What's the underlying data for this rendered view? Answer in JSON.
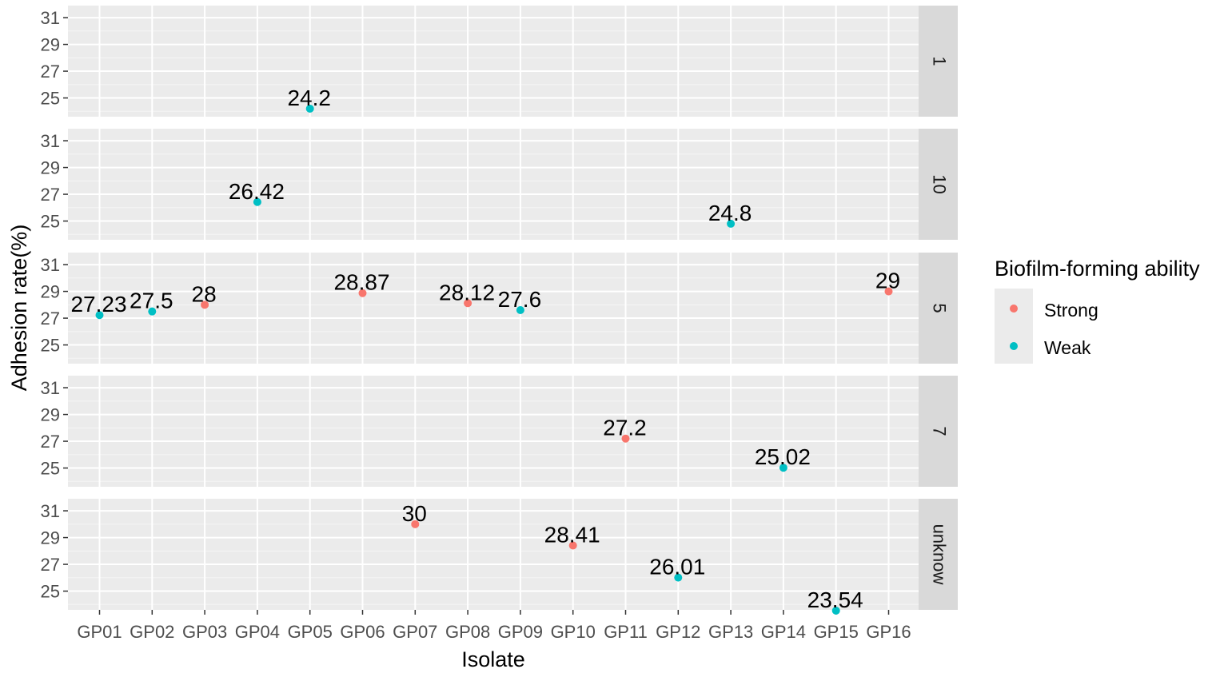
{
  "chart_data": {
    "type": "scatter",
    "xlabel": "Isolate",
    "ylabel": "Adhesion rate(%)",
    "categories": [
      "GP01",
      "GP02",
      "GP03",
      "GP04",
      "GP05",
      "GP06",
      "GP07",
      "GP08",
      "GP09",
      "GP10",
      "GP11",
      "GP12",
      "GP13",
      "GP14",
      "GP15",
      "GP16"
    ],
    "y_ticks": [
      25,
      27,
      29,
      31
    ],
    "ylim": [
      23.6,
      31.9
    ],
    "grid": true,
    "facets": [
      "1",
      "10",
      "5",
      "7",
      "unknow"
    ],
    "legend": {
      "title": "Biofilm-forming ability",
      "placement": "right",
      "entries": [
        {
          "name": "Strong",
          "color": "#f8766d"
        },
        {
          "name": "Weak",
          "color": "#00bfc4"
        }
      ]
    },
    "points": [
      {
        "facet": "1",
        "isolate": "GP05",
        "value": 24.2,
        "label": "24.2",
        "group": "Weak"
      },
      {
        "facet": "10",
        "isolate": "GP04",
        "value": 26.42,
        "label": "26.42",
        "group": "Weak"
      },
      {
        "facet": "10",
        "isolate": "GP13",
        "value": 24.8,
        "label": "24.8",
        "group": "Weak"
      },
      {
        "facet": "5",
        "isolate": "GP01",
        "value": 27.23,
        "label": "27.23",
        "group": "Weak"
      },
      {
        "facet": "5",
        "isolate": "GP02",
        "value": 27.5,
        "label": "27.5",
        "group": "Weak"
      },
      {
        "facet": "5",
        "isolate": "GP03",
        "value": 28,
        "label": "28",
        "group": "Strong"
      },
      {
        "facet": "5",
        "isolate": "GP06",
        "value": 28.87,
        "label": "28.87",
        "group": "Strong"
      },
      {
        "facet": "5",
        "isolate": "GP08",
        "value": 28.12,
        "label": "28.12",
        "group": "Strong"
      },
      {
        "facet": "5",
        "isolate": "GP09",
        "value": 27.6,
        "label": "27.6",
        "group": "Weak"
      },
      {
        "facet": "5",
        "isolate": "GP16",
        "value": 29,
        "label": "29",
        "group": "Strong"
      },
      {
        "facet": "7",
        "isolate": "GP11",
        "value": 27.2,
        "label": "27.2",
        "group": "Strong"
      },
      {
        "facet": "7",
        "isolate": "GP14",
        "value": 25.02,
        "label": "25.02",
        "group": "Weak"
      },
      {
        "facet": "unknow",
        "isolate": "GP07",
        "value": 30,
        "label": "30",
        "group": "Strong"
      },
      {
        "facet": "unknow",
        "isolate": "GP10",
        "value": 28.41,
        "label": "28.41",
        "group": "Strong"
      },
      {
        "facet": "unknow",
        "isolate": "GP12",
        "value": 26.01,
        "label": "26.01",
        "group": "Weak"
      },
      {
        "facet": "unknow",
        "isolate": "GP15",
        "value": 23.54,
        "label": "23.54",
        "group": "Weak"
      }
    ]
  }
}
